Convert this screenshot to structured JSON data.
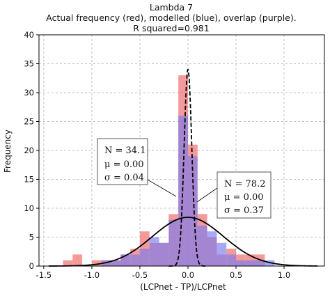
{
  "chart_data": {
    "type": "bar",
    "title": "Lambda 7",
    "subtitle": "Actual frequency (red), modelled (blue), overlap (purple).",
    "subtitle2": "R squared=0.981",
    "xlabel": "(LCPnet - TP)/LCPnet",
    "ylabel": "Frequency",
    "xlim": [
      -1.55,
      1.42
    ],
    "ylim": [
      0,
      40
    ],
    "xticks": [
      -1.5,
      -1.0,
      -0.5,
      0.0,
      0.5,
      1.0
    ],
    "xtick_labels": [
      "-1.5",
      "-1.0",
      "-0.5",
      "0.0",
      "0.5",
      "1.0"
    ],
    "yticks": [
      0,
      5,
      10,
      15,
      20,
      25,
      30,
      35,
      40
    ],
    "ytick_labels": [
      "0",
      "5",
      "10",
      "15",
      "20",
      "25",
      "30",
      "35",
      "40"
    ],
    "grid": true,
    "bin_width": 0.1,
    "series": [
      {
        "name": "Actual frequency",
        "color": "#f07878",
        "bin_starts": [
          -1.3,
          -1.2,
          -1.1,
          -1.0,
          -0.9,
          -0.8,
          -0.7,
          -0.6,
          -0.5,
          -0.4,
          -0.3,
          -0.2,
          -0.1,
          0.0,
          0.1,
          0.2,
          0.3,
          0.4,
          0.5,
          0.6,
          0.7,
          0.8
        ],
        "values": [
          1,
          2,
          0,
          1,
          1,
          1,
          2,
          3,
          6,
          4,
          4,
          9,
          33,
          21,
          9,
          5,
          2,
          3,
          2,
          2,
          2,
          0
        ]
      },
      {
        "name": "Modelled",
        "color": "#7a7af0",
        "bin_starts": [
          -1.3,
          -1.2,
          -1.1,
          -1.0,
          -0.9,
          -0.8,
          -0.7,
          -0.6,
          -0.5,
          -0.4,
          -0.3,
          -0.2,
          -0.1,
          0.0,
          0.1,
          0.2,
          0.3,
          0.4,
          0.5,
          0.6,
          0.7,
          0.8
        ],
        "values": [
          0,
          0,
          0,
          0,
          1,
          1,
          2,
          2,
          3,
          5,
          4,
          8,
          26,
          19,
          7,
          6,
          4,
          2,
          1,
          1,
          1,
          1
        ]
      }
    ],
    "curves": [
      {
        "name": "Gaussian N=78.2",
        "N": 78.2,
        "mu": 0.0,
        "sigma": 0.37,
        "style": "solid",
        "color": "#000000"
      },
      {
        "name": "Gaussian N=34.1",
        "N": 34.1,
        "mu": 0.0,
        "sigma": 0.04,
        "style": "dashed",
        "color": "#000000"
      }
    ],
    "annotations": [
      {
        "lines": [
          "N = 34.1",
          "μ = 0.00",
          "σ = 0.04"
        ]
      },
      {
        "lines": [
          "N = 78.2",
          "μ = 0.00",
          "σ = 0.37"
        ]
      }
    ]
  }
}
